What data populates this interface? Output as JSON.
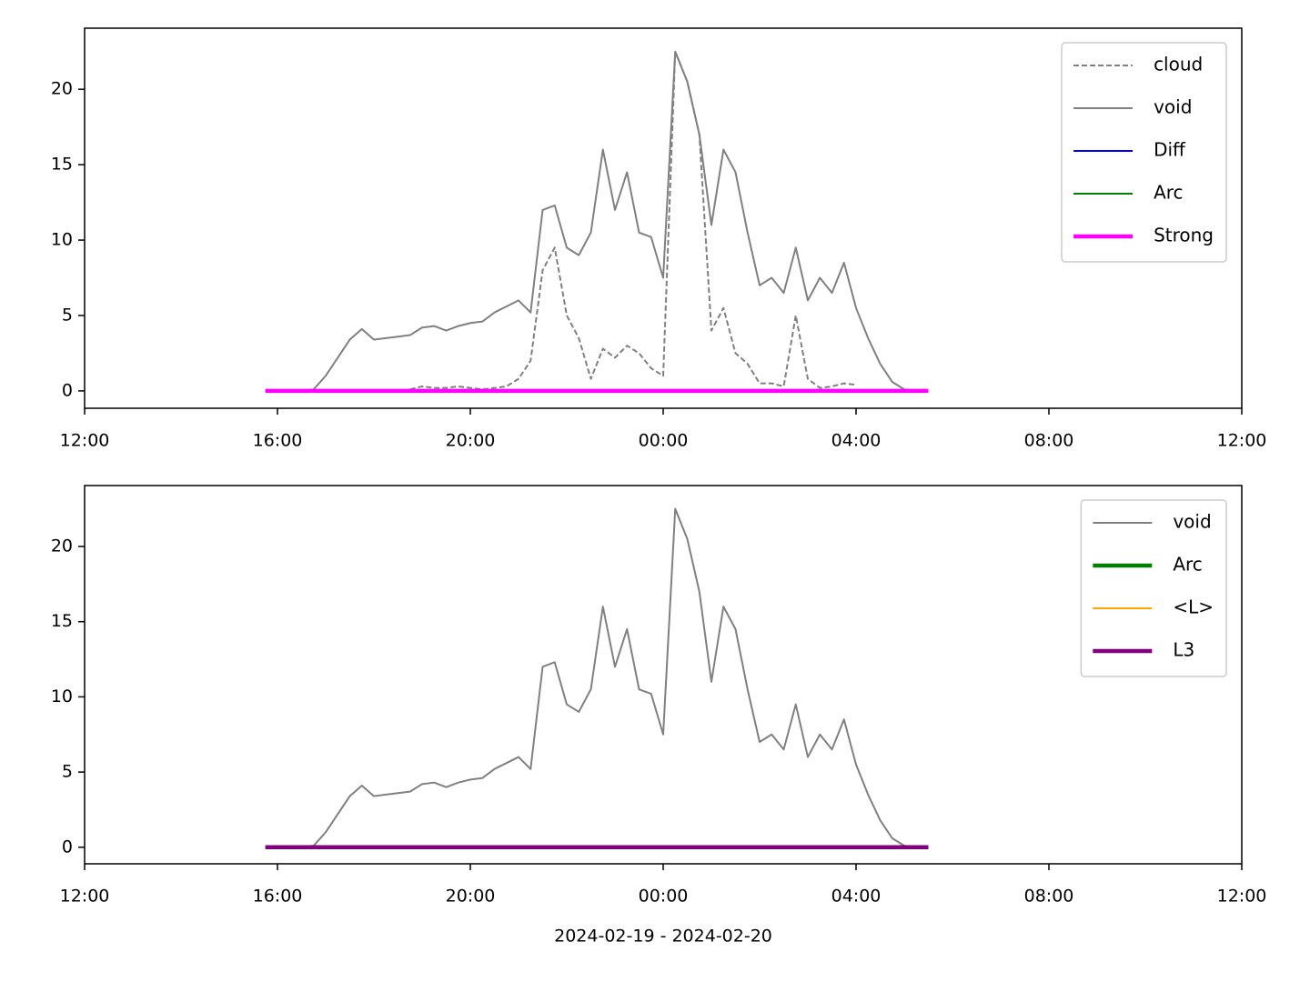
{
  "chart_data": [
    {
      "type": "line",
      "x": [
        "2024-02-19 15:45",
        "2024-02-19 16:00",
        "2024-02-19 16:15",
        "2024-02-19 16:30",
        "2024-02-19 16:45",
        "2024-02-19 17:00",
        "2024-02-19 17:15",
        "2024-02-19 17:30",
        "2024-02-19 17:45",
        "2024-02-19 18:00",
        "2024-02-19 18:15",
        "2024-02-19 18:30",
        "2024-02-19 18:45",
        "2024-02-19 19:00",
        "2024-02-19 19:15",
        "2024-02-19 19:30",
        "2024-02-19 19:45",
        "2024-02-19 20:00",
        "2024-02-19 20:15",
        "2024-02-19 20:30",
        "2024-02-19 20:45",
        "2024-02-19 21:00",
        "2024-02-19 21:15",
        "2024-02-19 21:30",
        "2024-02-19 21:45",
        "2024-02-19 22:00",
        "2024-02-19 22:15",
        "2024-02-19 22:30",
        "2024-02-19 22:45",
        "2024-02-19 23:00",
        "2024-02-19 23:15",
        "2024-02-19 23:30",
        "2024-02-19 23:45",
        "2024-02-20 00:00",
        "2024-02-20 00:15",
        "2024-02-20 00:30",
        "2024-02-20 00:45",
        "2024-02-20 01:00",
        "2024-02-20 01:15",
        "2024-02-20 01:30",
        "2024-02-20 01:45",
        "2024-02-20 02:00",
        "2024-02-20 02:15",
        "2024-02-20 02:30",
        "2024-02-20 02:45",
        "2024-02-20 03:00",
        "2024-02-20 03:15",
        "2024-02-20 03:30",
        "2024-02-20 03:45",
        "2024-02-20 04:00",
        "2024-02-20 04:15",
        "2024-02-20 04:30",
        "2024-02-20 04:45",
        "2024-02-20 05:00",
        "2024-02-20 05:15",
        "2024-02-20 05:30"
      ],
      "series": [
        {
          "name": "cloud",
          "color": "#808080",
          "linestyle": "dashed",
          "linewidth": 2,
          "values": [
            null,
            null,
            null,
            null,
            null,
            null,
            null,
            null,
            null,
            null,
            null,
            null,
            0.1,
            0.3,
            0.2,
            0.2,
            0.3,
            0.2,
            0.1,
            0.2,
            0.3,
            0.8,
            2.0,
            8.0,
            9.5,
            5.0,
            3.5,
            0.8,
            2.8,
            2.2,
            3.0,
            2.5,
            1.5,
            1.0,
            22.5,
            20.5,
            17.0,
            4.0,
            5.5,
            2.5,
            1.8,
            0.5,
            0.5,
            0.3,
            5.0,
            0.8,
            0.2,
            0.3,
            0.5,
            0.4,
            null,
            null,
            null,
            null,
            null,
            null
          ]
        },
        {
          "name": "void",
          "color": "#808080",
          "linestyle": "solid",
          "linewidth": 2,
          "values": [
            0,
            0,
            0,
            0,
            0.1,
            1.0,
            2.2,
            3.4,
            4.1,
            3.4,
            3.5,
            3.6,
            3.7,
            4.2,
            4.3,
            4.0,
            4.3,
            4.5,
            4.6,
            5.2,
            5.6,
            6.0,
            5.2,
            12.0,
            12.3,
            9.5,
            9.0,
            10.5,
            16.0,
            12.0,
            14.5,
            10.5,
            10.2,
            7.5,
            22.5,
            20.5,
            17.0,
            11.0,
            16.0,
            14.5,
            10.5,
            7.0,
            7.5,
            6.5,
            9.5,
            6.0,
            7.5,
            6.5,
            8.5,
            5.5,
            3.5,
            1.8,
            0.6,
            0.1,
            0,
            0
          ]
        },
        {
          "name": "Diff",
          "color": "#0000ff",
          "linestyle": "solid",
          "linewidth": 2,
          "values": [
            0,
            0,
            0,
            0,
            0,
            0,
            0,
            0,
            0,
            0,
            0,
            0,
            0,
            0,
            0,
            0,
            0,
            0,
            0,
            0,
            0,
            0,
            0,
            0,
            0,
            0,
            0,
            0,
            0,
            0,
            0,
            0,
            0,
            0,
            0,
            0,
            0,
            0,
            0,
            0,
            0,
            0,
            0,
            0,
            0,
            0,
            0,
            0,
            0,
            0,
            0,
            0,
            0,
            0,
            0,
            0
          ]
        },
        {
          "name": "Arc",
          "color": "#008000",
          "linestyle": "solid",
          "linewidth": 2,
          "values": [
            0,
            0,
            0,
            0,
            0,
            0,
            0,
            0,
            0,
            0,
            0,
            0,
            0,
            0,
            0,
            0,
            0,
            0,
            0,
            0,
            0,
            0,
            0,
            0,
            0,
            0,
            0,
            0,
            0,
            0,
            0,
            0,
            0,
            0,
            0,
            0,
            0,
            0,
            0,
            0,
            0,
            0,
            0,
            0,
            0,
            0,
            0,
            0,
            0,
            0,
            0,
            0,
            0,
            0,
            0,
            0
          ]
        },
        {
          "name": "Strong",
          "color": "#ff00ff",
          "linestyle": "solid",
          "linewidth": 4.5,
          "values": [
            0,
            0,
            0,
            0,
            0,
            0,
            0,
            0,
            0,
            0,
            0,
            0,
            0,
            0,
            0,
            0,
            0,
            0,
            0,
            0,
            0,
            0,
            0,
            0,
            0,
            0,
            0,
            0,
            0,
            0,
            0,
            0,
            0,
            0,
            0,
            0,
            0,
            0,
            0,
            0,
            0,
            0,
            0,
            0,
            0,
            0,
            0,
            0,
            0,
            0,
            0,
            0,
            0,
            0,
            0,
            0
          ]
        }
      ],
      "xlim": [
        "2024-02-19 12:00",
        "2024-02-20 12:00"
      ],
      "xticks": [
        {
          "value": "2024-02-19 12:00",
          "label": "12:00"
        },
        {
          "value": "2024-02-19 16:00",
          "label": "16:00"
        },
        {
          "value": "2024-02-19 20:00",
          "label": "20:00"
        },
        {
          "value": "2024-02-20 00:00",
          "label": "00:00"
        },
        {
          "value": "2024-02-20 04:00",
          "label": "04:00"
        },
        {
          "value": "2024-02-20 08:00",
          "label": "08:00"
        },
        {
          "value": "2024-02-20 12:00",
          "label": "12:00"
        }
      ],
      "ylim": [
        -1.15,
        24.05
      ],
      "yticks": [
        0,
        5,
        10,
        15,
        20
      ],
      "legend": "upper right"
    },
    {
      "type": "line",
      "x": [
        "2024-02-19 15:45",
        "2024-02-19 16:00",
        "2024-02-19 16:15",
        "2024-02-19 16:30",
        "2024-02-19 16:45",
        "2024-02-19 17:00",
        "2024-02-19 17:15",
        "2024-02-19 17:30",
        "2024-02-19 17:45",
        "2024-02-19 18:00",
        "2024-02-19 18:15",
        "2024-02-19 18:30",
        "2024-02-19 18:45",
        "2024-02-19 19:00",
        "2024-02-19 19:15",
        "2024-02-19 19:30",
        "2024-02-19 19:45",
        "2024-02-19 20:00",
        "2024-02-19 20:15",
        "2024-02-19 20:30",
        "2024-02-19 20:45",
        "2024-02-19 21:00",
        "2024-02-19 21:15",
        "2024-02-19 21:30",
        "2024-02-19 21:45",
        "2024-02-19 22:00",
        "2024-02-19 22:15",
        "2024-02-19 22:30",
        "2024-02-19 22:45",
        "2024-02-19 23:00",
        "2024-02-19 23:15",
        "2024-02-19 23:30",
        "2024-02-19 23:45",
        "2024-02-20 00:00",
        "2024-02-20 00:15",
        "2024-02-20 00:30",
        "2024-02-20 00:45",
        "2024-02-20 01:00",
        "2024-02-20 01:15",
        "2024-02-20 01:30",
        "2024-02-20 01:45",
        "2024-02-20 02:00",
        "2024-02-20 02:15",
        "2024-02-20 02:30",
        "2024-02-20 02:45",
        "2024-02-20 03:00",
        "2024-02-20 03:15",
        "2024-02-20 03:30",
        "2024-02-20 03:45",
        "2024-02-20 04:00",
        "2024-02-20 04:15",
        "2024-02-20 04:30",
        "2024-02-20 04:45",
        "2024-02-20 05:00",
        "2024-02-20 05:15",
        "2024-02-20 05:30"
      ],
      "series": [
        {
          "name": "void",
          "color": "#808080",
          "linestyle": "solid",
          "linewidth": 2,
          "values": [
            0,
            0,
            0,
            0,
            0.1,
            1.0,
            2.2,
            3.4,
            4.1,
            3.4,
            3.5,
            3.6,
            3.7,
            4.2,
            4.3,
            4.0,
            4.3,
            4.5,
            4.6,
            5.2,
            5.6,
            6.0,
            5.2,
            12.0,
            12.3,
            9.5,
            9.0,
            10.5,
            16.0,
            12.0,
            14.5,
            10.5,
            10.2,
            7.5,
            22.5,
            20.5,
            17.0,
            11.0,
            16.0,
            14.5,
            10.5,
            7.0,
            7.5,
            6.5,
            9.5,
            6.0,
            7.5,
            6.5,
            8.5,
            5.5,
            3.5,
            1.8,
            0.6,
            0.1,
            0,
            0
          ]
        },
        {
          "name": "Arc",
          "color": "#008000",
          "linestyle": "solid",
          "linewidth": 4.5,
          "values": [
            0,
            0,
            0,
            0,
            0,
            0,
            0,
            0,
            0,
            0,
            0,
            0,
            0,
            0,
            0,
            0,
            0,
            0,
            0,
            0,
            0,
            0,
            0,
            0,
            0,
            0,
            0,
            0,
            0,
            0,
            0,
            0,
            0,
            0,
            0,
            0,
            0,
            0,
            0,
            0,
            0,
            0,
            0,
            0,
            0,
            0,
            0,
            0,
            0,
            0,
            0,
            0,
            0,
            0,
            0,
            0
          ]
        },
        {
          "name": "<L>",
          "color": "#ffa500",
          "linestyle": "solid",
          "linewidth": 2,
          "values": [
            0,
            0,
            0,
            0,
            0,
            0,
            0,
            0,
            0,
            0,
            0,
            0,
            0,
            0,
            0,
            0,
            0,
            0,
            0,
            0,
            0,
            0,
            0,
            0,
            0,
            0,
            0,
            0,
            0,
            0,
            0,
            0,
            0,
            0,
            0,
            0,
            0,
            0,
            0,
            0,
            0,
            0,
            0,
            0,
            0,
            0,
            0,
            0,
            0,
            0,
            0,
            0,
            0,
            0,
            0,
            0
          ]
        },
        {
          "name": "L3",
          "color": "#800080",
          "linestyle": "solid",
          "linewidth": 4.5,
          "values": [
            0,
            0,
            0,
            0,
            0,
            0,
            0,
            0,
            0,
            0,
            0,
            0,
            0,
            0,
            0,
            0,
            0,
            0,
            0,
            0,
            0,
            0,
            0,
            0,
            0,
            0,
            0,
            0,
            0,
            0,
            0,
            0,
            0,
            0,
            0,
            0,
            0,
            0,
            0,
            0,
            0,
            0,
            0,
            0,
            0,
            0,
            0,
            0,
            0,
            0,
            0,
            0,
            0,
            0,
            0,
            0
          ]
        }
      ],
      "xlim": [
        "2024-02-19 12:00",
        "2024-02-20 12:00"
      ],
      "xticks": [
        {
          "value": "2024-02-19 12:00",
          "label": "12:00"
        },
        {
          "value": "2024-02-19 16:00",
          "label": "16:00"
        },
        {
          "value": "2024-02-19 20:00",
          "label": "20:00"
        },
        {
          "value": "2024-02-20 00:00",
          "label": "00:00"
        },
        {
          "value": "2024-02-20 04:00",
          "label": "04:00"
        },
        {
          "value": "2024-02-20 08:00",
          "label": "08:00"
        },
        {
          "value": "2024-02-20 12:00",
          "label": "12:00"
        }
      ],
      "ylim": [
        -1.1,
        24.05
      ],
      "yticks": [
        0,
        5,
        10,
        15,
        20
      ],
      "legend": "upper right",
      "xlabel": "2024-02-19 - 2024-02-20"
    }
  ]
}
